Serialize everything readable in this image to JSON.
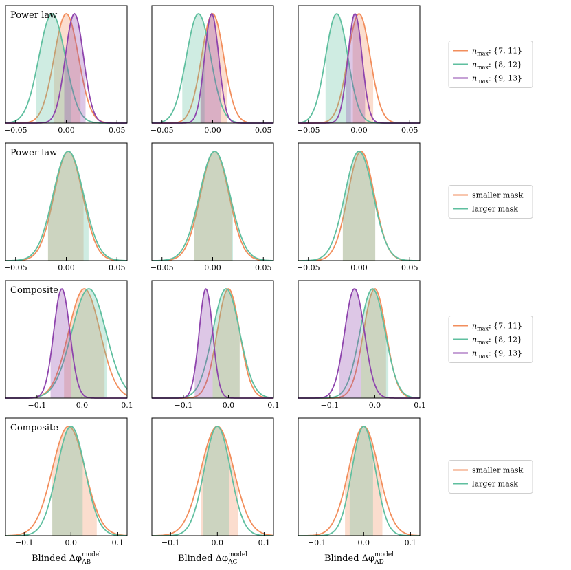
{
  "colors": {
    "orange": "#f28e5c",
    "teal": "#5fbf9f",
    "purple": "#8e44ad"
  },
  "chart_data": {
    "type": "area",
    "description_rows": [
      "Power law",
      "Power law",
      "Composite",
      "Composite"
    ],
    "x_labels": [
      {
        "main": "Blinded Δφ",
        "sup": "model",
        "sub": "AB"
      },
      {
        "main": "Blinded Δφ",
        "sup": "model",
        "sub": "AC"
      },
      {
        "main": "Blinded Δφ",
        "sup": "model",
        "sub": "AD"
      }
    ],
    "rows": [
      {
        "row_label": "Power law",
        "legend_key": "nmax",
        "xlim": [
          -0.06,
          0.06
        ],
        "ticks": [
          -0.05,
          0.0,
          0.05
        ],
        "tick_labels": [
          "−0.05",
          "0.00",
          "0.05"
        ],
        "panels": [
          {
            "series": [
              {
                "name": "nmax: {7, 11}",
                "color": "orange",
                "mean": 0.0,
                "sd": 0.012,
                "lo": -0.012,
                "hi": 0.014
              },
              {
                "name": "nmax: {8, 12}",
                "color": "teal",
                "mean": -0.014,
                "sd": 0.013,
                "lo": -0.03,
                "hi": 0.005
              },
              {
                "name": "nmax: {9, 13}",
                "color": "purple",
                "mean": 0.008,
                "sd": 0.009,
                "lo": -0.002,
                "hi": 0.019
              }
            ]
          },
          {
            "series": [
              {
                "name": "nmax: {7, 11}",
                "color": "orange",
                "mean": 0.0,
                "sd": 0.011,
                "lo": -0.012,
                "hi": 0.014
              },
              {
                "name": "nmax: {8, 12}",
                "color": "teal",
                "mean": -0.014,
                "sd": 0.012,
                "lo": -0.03,
                "hi": -0.008
              },
              {
                "name": "nmax: {9, 13}",
                "color": "purple",
                "mean": -0.001,
                "sd": 0.007,
                "lo": -0.012,
                "hi": 0.008
              }
            ]
          },
          {
            "series": [
              {
                "name": "nmax: {7, 11}",
                "color": "orange",
                "mean": 0.0,
                "sd": 0.011,
                "lo": -0.006,
                "hi": 0.014
              },
              {
                "name": "nmax: {8, 12}",
                "color": "teal",
                "mean": -0.022,
                "sd": 0.011,
                "lo": -0.033,
                "hi": -0.008
              },
              {
                "name": "nmax: {9, 13}",
                "color": "purple",
                "mean": -0.004,
                "sd": 0.007,
                "lo": -0.013,
                "hi": 0.006
              }
            ]
          }
        ]
      },
      {
        "row_label": "Power law",
        "legend_key": "mask",
        "xlim": [
          -0.06,
          0.06
        ],
        "ticks": [
          -0.05,
          0.0,
          0.05
        ],
        "tick_labels": [
          "−0.05",
          "0.00",
          "0.05"
        ],
        "panels": [
          {
            "series": [
              {
                "name": "smaller mask",
                "color": "orange",
                "mean": 0.002,
                "sd": 0.014,
                "lo": -0.018,
                "hi": 0.017
              },
              {
                "name": "larger mask",
                "color": "teal",
                "mean": 0.002,
                "sd": 0.015,
                "lo": -0.018,
                "hi": 0.022
              }
            ]
          },
          {
            "series": [
              {
                "name": "smaller mask",
                "color": "orange",
                "mean": 0.002,
                "sd": 0.014,
                "lo": -0.018,
                "hi": 0.019
              },
              {
                "name": "larger mask",
                "color": "teal",
                "mean": 0.002,
                "sd": 0.015,
                "lo": -0.018,
                "hi": 0.02
              }
            ]
          },
          {
            "series": [
              {
                "name": "smaller mask",
                "color": "orange",
                "mean": 0.002,
                "sd": 0.013,
                "lo": -0.016,
                "hi": 0.016
              },
              {
                "name": "larger mask",
                "color": "teal",
                "mean": 0.0,
                "sd": 0.014,
                "lo": -0.016,
                "hi": 0.016
              }
            ]
          }
        ]
      },
      {
        "row_label": "Composite",
        "legend_key": "nmax",
        "xlim": [
          -0.17,
          0.1
        ],
        "ticks": [
          -0.1,
          0.0,
          0.1
        ],
        "tick_labels": [
          "−0.1",
          "0.0",
          "0.1"
        ],
        "panels": [
          {
            "series": [
              {
                "name": "nmax: {7, 11}",
                "color": "orange",
                "mean": 0.005,
                "sd": 0.035,
                "lo": -0.04,
                "hi": 0.05
              },
              {
                "name": "nmax: {8, 12}",
                "color": "teal",
                "mean": 0.015,
                "sd": 0.038,
                "lo": -0.025,
                "hi": 0.055
              },
              {
                "name": "nmax: {9, 13}",
                "color": "purple",
                "mean": -0.045,
                "sd": 0.018,
                "lo": -0.07,
                "hi": -0.025
              }
            ]
          },
          {
            "series": [
              {
                "name": "nmax: {7, 11}",
                "color": "orange",
                "mean": 0.0,
                "sd": 0.025,
                "lo": -0.035,
                "hi": 0.025
              },
              {
                "name": "nmax: {8, 12}",
                "color": "teal",
                "mean": -0.005,
                "sd": 0.03,
                "lo": -0.035,
                "hi": 0.025
              },
              {
                "name": "nmax: {9, 13}",
                "color": "purple",
                "mean": -0.05,
                "sd": 0.015,
                "lo": -0.075,
                "hi": -0.035
              }
            ]
          },
          {
            "series": [
              {
                "name": "nmax: {7, 11}",
                "color": "orange",
                "mean": 0.0,
                "sd": 0.025,
                "lo": -0.03,
                "hi": 0.025
              },
              {
                "name": "nmax: {8, 12}",
                "color": "teal",
                "mean": -0.005,
                "sd": 0.028,
                "lo": -0.03,
                "hi": 0.03
              },
              {
                "name": "nmax: {9, 13}",
                "color": "purple",
                "mean": -0.045,
                "sd": 0.022,
                "lo": -0.08,
                "hi": -0.03
              }
            ]
          }
        ]
      },
      {
        "row_label": "Composite",
        "legend_key": "mask",
        "xlim": [
          -0.14,
          0.12
        ],
        "ticks": [
          -0.1,
          0.0,
          0.1
        ],
        "tick_labels": [
          "−0.1",
          "0.0",
          "0.1"
        ],
        "panels": [
          {
            "series": [
              {
                "name": "smaller mask",
                "color": "orange",
                "mean": -0.005,
                "sd": 0.035,
                "lo": -0.04,
                "hi": 0.055
              },
              {
                "name": "larger mask",
                "color": "teal",
                "mean": 0.0,
                "sd": 0.03,
                "lo": -0.04,
                "hi": 0.025
              }
            ]
          },
          {
            "series": [
              {
                "name": "smaller mask",
                "color": "orange",
                "mean": 0.0,
                "sd": 0.035,
                "lo": -0.035,
                "hi": 0.045
              },
              {
                "name": "larger mask",
                "color": "teal",
                "mean": 0.0,
                "sd": 0.028,
                "lo": -0.03,
                "hi": 0.025
              }
            ]
          },
          {
            "series": [
              {
                "name": "smaller mask",
                "color": "orange",
                "mean": 0.0,
                "sd": 0.032,
                "lo": -0.04,
                "hi": 0.04
              },
              {
                "name": "larger mask",
                "color": "teal",
                "mean": 0.0,
                "sd": 0.025,
                "lo": -0.03,
                "hi": 0.02
              }
            ]
          }
        ]
      }
    ],
    "legends": {
      "nmax": [
        {
          "label_main": "n",
          "label_sub": "max",
          "label_rest": ": {7, 11}",
          "color": "orange"
        },
        {
          "label_main": "n",
          "label_sub": "max",
          "label_rest": ": {8, 12}",
          "color": "teal"
        },
        {
          "label_main": "n",
          "label_sub": "max",
          "label_rest": ": {9, 13}",
          "color": "purple"
        }
      ],
      "mask": [
        {
          "label_main": "smaller mask",
          "label_sub": "",
          "label_rest": "",
          "color": "orange"
        },
        {
          "label_main": "larger mask",
          "label_sub": "",
          "label_rest": "",
          "color": "teal"
        }
      ]
    }
  }
}
